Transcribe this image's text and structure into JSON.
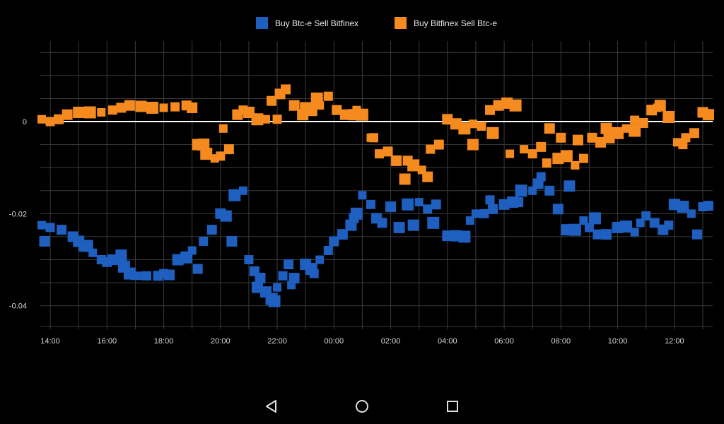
{
  "colors": {
    "background": "#000000",
    "grid": "#3a3a3a",
    "zero_line": "#ffffff",
    "series1": "#1e5fbf",
    "series2": "#f58a1f"
  },
  "legend": {
    "items": [
      {
        "label": "Buy Btc-e Sell Bitfinex",
        "color": "#1e5fbf"
      },
      {
        "label": "Buy Bitfinex Sell Btc-e",
        "color": "#f58a1f"
      }
    ]
  },
  "navigation": {
    "back_icon": "back-icon",
    "home_icon": "home-icon",
    "recents_icon": "recents-icon"
  },
  "chart_data": {
    "type": "scatter",
    "title": "",
    "xlabel": "",
    "ylabel": "",
    "x_unit": "hours since 14:00",
    "xlim": [
      -0.35,
      23.35
    ],
    "ylim": [
      -0.0445,
      0.0175
    ],
    "x_tick_labels": [
      "14:00",
      "16:00",
      "18:00",
      "20:00",
      "22:00",
      "00:00",
      "02:00",
      "04:00",
      "06:00",
      "08:00",
      "10:00",
      "12:00"
    ],
    "x_tick_values": [
      0,
      2,
      4,
      6,
      8,
      10,
      12,
      14,
      16,
      18,
      20,
      22
    ],
    "y_tick_labels": [
      "0",
      "-0.02",
      "-0.04"
    ],
    "y_tick_values": [
      0,
      -0.02,
      -0.04
    ],
    "series": [
      {
        "name": "Buy Btc-e Sell Bitfinex",
        "color": "#1e5fbf",
        "x": [
          -0.3,
          0,
          0.4,
          0.8,
          1.0,
          1.3,
          1.5,
          1.8,
          2.0,
          2.2,
          2.5,
          2.8,
          3.0,
          3.4,
          3.8,
          4.2,
          4.5,
          4.8,
          5.0,
          5.4,
          5.7,
          6.0,
          6.2,
          6.5,
          6.8,
          7.0,
          7.2,
          7.4,
          7.6,
          7.8,
          8.0,
          8.2,
          8.4,
          8.6,
          9.0,
          9.2,
          9.5,
          9.8,
          10.0,
          10.3,
          10.6,
          10.8,
          11.0,
          11.3,
          11.7,
          12.0,
          12.3,
          12.6,
          13.0,
          13.3,
          13.6,
          14.0,
          14.3,
          14.6,
          15.0,
          15.3,
          15.6,
          16.0,
          16.3,
          16.6,
          17.0,
          17.3,
          17.6,
          17.9,
          18.2,
          18.5,
          18.8,
          19.0,
          19.3,
          19.6,
          20.0,
          20.3,
          20.6,
          21.0,
          21.3,
          21.6,
          22.0,
          22.3,
          22.6,
          23.0,
          23.2,
          -0.2,
          1.2,
          2.6,
          3.3,
          4.0,
          5.2,
          6.4,
          7.3,
          7.9,
          8.5,
          9.3,
          10.7,
          11.5,
          12.8,
          13.5,
          14.8,
          15.5,
          16.5,
          17.2,
          18.3,
          19.2,
          20.8,
          21.8,
          22.8
        ],
        "y": [
          -0.0225,
          -0.023,
          -0.0235,
          -0.025,
          -0.026,
          -0.027,
          -0.0285,
          -0.03,
          -0.0305,
          -0.03,
          -0.029,
          -0.033,
          -0.0335,
          -0.0335,
          -0.0335,
          -0.0333,
          -0.03,
          -0.0295,
          -0.028,
          -0.026,
          -0.0235,
          -0.02,
          -0.0205,
          -0.016,
          -0.015,
          -0.03,
          -0.0325,
          -0.034,
          -0.037,
          -0.0385,
          -0.036,
          -0.0335,
          -0.031,
          -0.034,
          -0.031,
          -0.032,
          -0.03,
          -0.028,
          -0.026,
          -0.0245,
          -0.0225,
          -0.02,
          -0.016,
          -0.018,
          -0.022,
          -0.0185,
          -0.023,
          -0.018,
          -0.0175,
          -0.019,
          -0.018,
          -0.0248,
          -0.0248,
          -0.025,
          -0.02,
          -0.02,
          -0.019,
          -0.018,
          -0.0175,
          -0.015,
          -0.015,
          -0.012,
          -0.015,
          -0.019,
          -0.0235,
          -0.0235,
          -0.0215,
          -0.023,
          -0.0245,
          -0.0245,
          -0.023,
          -0.0228,
          -0.024,
          -0.0205,
          -0.022,
          -0.0235,
          -0.018,
          -0.0185,
          -0.02,
          -0.0185,
          -0.0183,
          -0.026,
          -0.027,
          -0.0315,
          -0.0335,
          -0.033,
          -0.032,
          -0.026,
          -0.036,
          -0.039,
          -0.0355,
          -0.033,
          -0.021,
          -0.021,
          -0.0225,
          -0.022,
          -0.0215,
          -0.017,
          -0.0175,
          -0.0135,
          -0.014,
          -0.021,
          -0.022,
          -0.0225,
          -0.0245
        ]
      },
      {
        "name": "Buy Bitfinex Sell Btc-e",
        "color": "#f58a1f",
        "x": [
          -0.3,
          0,
          0.3,
          0.6,
          1.0,
          1.4,
          1.8,
          2.2,
          2.5,
          2.8,
          3.2,
          3.6,
          4.0,
          4.4,
          4.8,
          5.0,
          5.2,
          5.5,
          5.8,
          6.0,
          6.3,
          6.6,
          7.0,
          7.3,
          7.6,
          8.0,
          8.3,
          8.6,
          8.9,
          9.2,
          9.5,
          9.8,
          10.1,
          10.4,
          10.7,
          11.0,
          11.3,
          11.6,
          11.9,
          12.2,
          12.5,
          12.8,
          13.1,
          13.4,
          13.7,
          14.0,
          14.3,
          14.6,
          14.9,
          15.2,
          15.5,
          15.8,
          16.1,
          16.4,
          16.7,
          17.0,
          17.3,
          17.6,
          17.9,
          18.2,
          18.5,
          18.8,
          19.1,
          19.4,
          19.7,
          20.0,
          20.3,
          20.6,
          20.9,
          21.2,
          21.5,
          21.8,
          22.1,
          22.4,
          22.7,
          23.0,
          23.2,
          5.4,
          6.1,
          6.8,
          7.8,
          8.1,
          9.0,
          9.4,
          10.8,
          11.4,
          12.6,
          13.3,
          14.9,
          15.6,
          16.2,
          17.5,
          18.0,
          18.6,
          19.6,
          20.6,
          21.4,
          22.3
        ],
        "y": [
          0.0005,
          0,
          0.0005,
          0.0015,
          0.002,
          0.002,
          0.002,
          0.0025,
          0.003,
          0.0035,
          0.0033,
          0.003,
          0.003,
          0.0032,
          0.0035,
          0.003,
          -0.005,
          -0.007,
          -0.008,
          -0.0075,
          -0.006,
          0.0015,
          0.002,
          0.0005,
          0.0005,
          0.0005,
          0.007,
          0.0035,
          0.0015,
          0.0025,
          0.0035,
          0.0055,
          0.0025,
          0.0015,
          0.0015,
          0.0015,
          -0.0035,
          -0.007,
          -0.0065,
          -0.0085,
          -0.0125,
          -0.0095,
          -0.0105,
          -0.006,
          -0.005,
          0.0005,
          -0.0005,
          -0.0015,
          -0.0005,
          -0.001,
          0.0025,
          0.0035,
          0.004,
          0.0035,
          -0.006,
          -0.007,
          -0.0055,
          -0.0015,
          -0.008,
          -0.0075,
          -0.0095,
          -0.008,
          -0.0035,
          -0.0045,
          -0.0035,
          -0.0025,
          -0.0015,
          0.0003,
          -0.0003,
          0.0025,
          0.0035,
          0.001,
          -0.0045,
          -0.0035,
          -0.0025,
          0.002,
          0.0015,
          -0.005,
          -0.0015,
          0.0025,
          0.0045,
          0.006,
          0.003,
          0.005,
          0.0025,
          -0.0035,
          -0.0085,
          -0.012,
          -0.005,
          -0.0025,
          -0.007,
          -0.009,
          -0.0035,
          -0.004,
          -0.0015,
          -0.002,
          0.003,
          -0.005
        ]
      }
    ],
    "legend_position": "top-center",
    "grid": true
  }
}
